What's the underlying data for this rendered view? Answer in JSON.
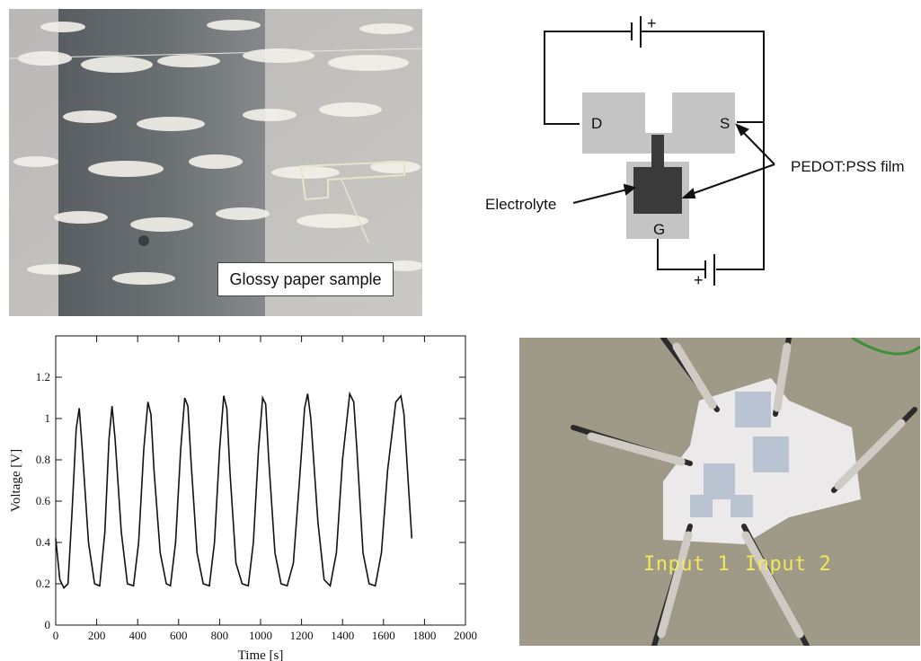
{
  "glossy_photo": {
    "label": "Glossy paper sample"
  },
  "schematic": {
    "drain_label": "D",
    "source_label": "S",
    "gate_label": "G",
    "electrolyte_label": "Electrolyte",
    "film_label": "PEDOT:PSS film",
    "battery_top_polarity": "+",
    "battery_bottom_polarity": "+",
    "colors": {
      "pedot": "#c4c4c4",
      "electrolyte": "#3a3a3a",
      "wire": "#111111"
    }
  },
  "device_photo": {
    "input1_label": "Input 1",
    "input2_label": "Input 2"
  },
  "chart_data": {
    "type": "line",
    "title": "",
    "xlabel": "Time [s]",
    "ylabel": "Voltage [V]",
    "xlim": [
      0,
      2000
    ],
    "ylim": [
      0,
      1.4
    ],
    "x_ticks": [
      "0",
      "200",
      "400",
      "600",
      "800",
      "1000",
      "1200",
      "1400",
      "1600",
      "1800",
      "2000"
    ],
    "y_ticks": [
      "0",
      "0.2",
      "0.4",
      "0.6",
      "0.8",
      "1",
      "1.2"
    ],
    "grid": false,
    "series": [
      {
        "x": [
          0,
          20,
          40,
          60,
          80,
          100,
          115,
          130,
          160,
          190,
          215,
          240,
          260,
          275,
          290,
          320,
          350,
          380,
          405,
          430,
          450,
          465,
          480,
          510,
          540,
          560,
          585,
          610,
          630,
          645,
          660,
          690,
          720,
          750,
          775,
          800,
          820,
          835,
          850,
          880,
          910,
          940,
          965,
          990,
          1010,
          1025,
          1040,
          1070,
          1100,
          1130,
          1160,
          1190,
          1215,
          1230,
          1245,
          1280,
          1310,
          1340,
          1370,
          1400,
          1435,
          1455,
          1470,
          1500,
          1530,
          1560,
          1590,
          1620,
          1660,
          1685,
          1700,
          1720,
          1738
        ],
        "y": [
          0.42,
          0.22,
          0.18,
          0.2,
          0.55,
          0.95,
          1.05,
          0.85,
          0.4,
          0.2,
          0.19,
          0.45,
          0.9,
          1.06,
          0.9,
          0.45,
          0.2,
          0.19,
          0.4,
          0.85,
          1.08,
          1.02,
          0.75,
          0.35,
          0.2,
          0.19,
          0.4,
          0.85,
          1.1,
          1.06,
          0.8,
          0.35,
          0.2,
          0.19,
          0.4,
          0.85,
          1.11,
          1.05,
          0.75,
          0.3,
          0.2,
          0.19,
          0.4,
          0.85,
          1.1,
          1.07,
          0.8,
          0.35,
          0.2,
          0.19,
          0.3,
          0.7,
          1.05,
          1.12,
          1.0,
          0.5,
          0.22,
          0.19,
          0.35,
          0.8,
          1.12,
          1.08,
          0.85,
          0.35,
          0.2,
          0.19,
          0.35,
          0.75,
          1.08,
          1.11,
          1.02,
          0.7,
          0.42
        ]
      }
    ]
  }
}
